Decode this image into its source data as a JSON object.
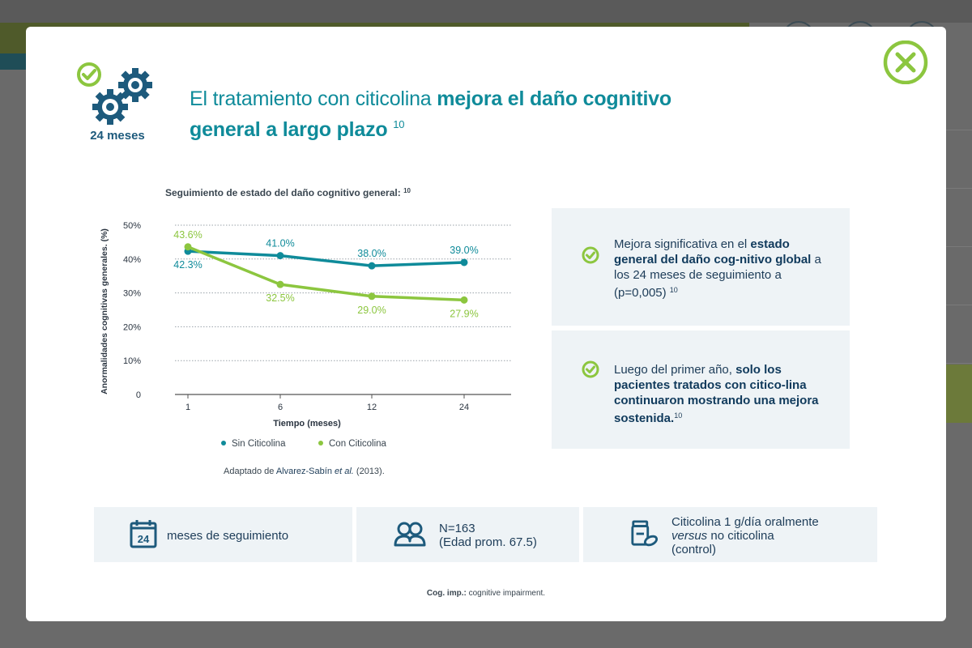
{
  "modal": {
    "badge_label": "24 meses",
    "title": {
      "part1": "El tratamiento con citicolina ",
      "bold1": "mejora el daño cognitivo",
      "bold2": "general a largo plazo",
      "ref": "10"
    },
    "chart_title": "Seguimiento de estado del daño cognitivo general:",
    "chart_title_ref": "10",
    "source_note": {
      "prefix": "Adaptado de ",
      "author": "Alvarez-Sabín ",
      "etal": "et al.",
      "suffix": " (2013)."
    },
    "panels": [
      {
        "line1": "Mejora significativa en el ",
        "bold": "estado general del daño cog-nitivo global",
        "line2": " a los 24 meses de seguimiento a (p=0,005) ",
        "ref": "10"
      },
      {
        "line1": "Luego del primer año, ",
        "bold": "solo los pacientes tratados con citico-lina continuaron mostrando una mejora sostenida.",
        "ref": "10"
      }
    ],
    "info": {
      "box1": {
        "icon_number": "24",
        "text": "meses de seguimiento"
      },
      "box2": {
        "line1": "N=163",
        "line2": "(Edad prom. 67.5)"
      },
      "box3": {
        "line1": "Citicolina 1 g/día oralmente",
        "versus": "versus",
        "line2": " no citicolina",
        "line3": "(control)"
      }
    },
    "footnote": {
      "bold": "Cog. imp.:",
      "text": " cognitive impairment."
    }
  },
  "icons": {
    "close": "close-icon",
    "check": "check-circle-icon",
    "gears": "gears-icon",
    "calendar": "calendar-icon",
    "people": "people-icon",
    "pills": "pills-icon"
  },
  "colors": {
    "teal": "#0f8b9a",
    "green": "#8cc63f",
    "navy": "#1d5a7c",
    "panel_bg": "#eef3f6"
  },
  "chart_data": {
    "type": "line",
    "xlabel": "Tiempo (meses)",
    "ylabel": "Anormalidades cognitivas generales. (%)",
    "x_ticks": [
      "1",
      "6",
      "12",
      "24"
    ],
    "y_ticks": [
      "50%",
      "40%",
      "30%",
      "20%",
      "10%",
      "0"
    ],
    "ylim": [
      0,
      50
    ],
    "grid": true,
    "legend_position": "bottom",
    "series": [
      {
        "name": "Sin Citicolina",
        "color": "#0f8b9a",
        "values": [
          42.3,
          41.0,
          38.0,
          39.0
        ],
        "labels": [
          "42.3%",
          "41.0%",
          "38.0%",
          "39.0%"
        ],
        "label_pos": [
          "below",
          "above",
          "above",
          "above"
        ]
      },
      {
        "name": "Con Citicolina",
        "color": "#8cc63f",
        "values": [
          43.6,
          32.5,
          29.0,
          27.9
        ],
        "labels": [
          "43.6%",
          "32.5%",
          "29.0%",
          "27.9%"
        ],
        "label_pos": [
          "above",
          "below",
          "below",
          "below"
        ]
      }
    ]
  }
}
